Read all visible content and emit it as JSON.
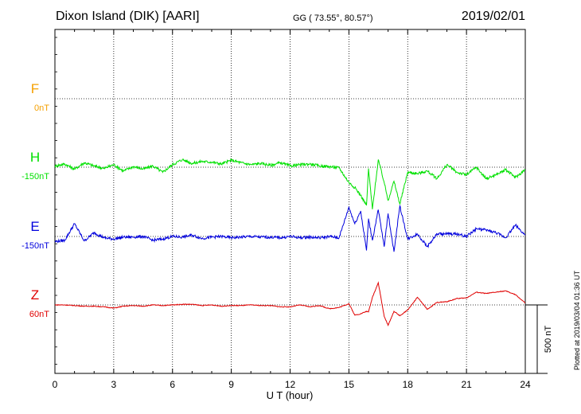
{
  "header": {
    "station": "Dixon Island (DIK)  [AARI]",
    "coords": "GG ( 73.55°,  80.57°)",
    "date": "2019/02/01"
  },
  "plotted_note": "Plotted at 2019/03/04 01:36 UT",
  "colors": {
    "F": "#f5a000",
    "H": "#00e000",
    "E": "#0000dd",
    "Z": "#e00000"
  },
  "chart_data": {
    "type": "line",
    "xlabel": "U T (hour)",
    "xlim": [
      0,
      24
    ],
    "xticks": [
      "0",
      "3",
      "6",
      "9",
      "12",
      "15",
      "18",
      "21",
      "24"
    ],
    "scale_bar": "500 nT",
    "series": [
      {
        "name": "F",
        "offset": "0nT",
        "x": [],
        "y": []
      },
      {
        "name": "H",
        "offset": "-150nT",
        "x": [
          0,
          0.5,
          1,
          1.5,
          2,
          2.5,
          3,
          3.5,
          4,
          4.5,
          5,
          5.5,
          6,
          6.5,
          7,
          7.5,
          8,
          8.5,
          9,
          9.5,
          10,
          10.5,
          11,
          11.5,
          12,
          12.5,
          13,
          13.5,
          14,
          14.5,
          15,
          15.3,
          15.6,
          15.9,
          16.0,
          16.2,
          16.5,
          16.8,
          17.0,
          17.3,
          17.6,
          18,
          18.5,
          19,
          19.5,
          20,
          20.5,
          21,
          21.5,
          22,
          22.5,
          23,
          23.5,
          24
        ],
        "y": [
          10,
          25,
          -15,
          35,
          10,
          -10,
          20,
          -30,
          5,
          -15,
          10,
          -40,
          20,
          60,
          30,
          45,
          40,
          25,
          55,
          35,
          20,
          30,
          15,
          35,
          10,
          20,
          25,
          10,
          5,
          -5,
          -120,
          -160,
          -220,
          -300,
          -10,
          -330,
          60,
          -120,
          -260,
          -110,
          -290,
          -40,
          -50,
          -30,
          -90,
          20,
          -40,
          -60,
          0,
          -90,
          -60,
          -20,
          -80,
          -20
        ]
      },
      {
        "name": "E",
        "offset": "-150nT",
        "x": [
          0,
          0.5,
          1,
          1.5,
          2,
          2.5,
          3,
          3.5,
          4,
          4.5,
          5,
          5.5,
          6,
          6.5,
          7,
          7.5,
          8,
          8.5,
          9,
          9.5,
          10,
          10.5,
          11,
          11.5,
          12,
          12.5,
          13,
          13.5,
          14,
          14.5,
          15,
          15.3,
          15.6,
          15.9,
          16.0,
          16.2,
          16.5,
          16.8,
          17.0,
          17.3,
          17.6,
          18,
          18.5,
          19,
          19.5,
          20,
          20.5,
          21,
          21.5,
          22,
          22.5,
          23,
          23.5,
          24
        ],
        "y": [
          -40,
          -30,
          100,
          -35,
          30,
          -10,
          -20,
          -5,
          -5,
          0,
          -30,
          -20,
          0,
          -5,
          10,
          -15,
          -5,
          0,
          -10,
          -5,
          0,
          -5,
          -5,
          -10,
          0,
          -10,
          -5,
          -10,
          0,
          -10,
          230,
          100,
          200,
          -110,
          140,
          -30,
          210,
          -80,
          180,
          -120,
          240,
          -20,
          20,
          -80,
          20,
          20,
          20,
          0,
          60,
          50,
          30,
          -10,
          90,
          10
        ]
      },
      {
        "name": "Z",
        "offset": "60nT",
        "x": [
          0,
          0.5,
          1,
          1.5,
          2,
          2.5,
          3,
          3.5,
          4,
          4.5,
          5,
          5.5,
          6,
          6.5,
          7,
          7.5,
          8,
          8.5,
          9,
          9.5,
          10,
          10.5,
          11,
          11.5,
          12,
          12.5,
          13,
          13.5,
          14,
          14.5,
          15,
          15.3,
          15.6,
          15.9,
          16.0,
          16.2,
          16.5,
          16.8,
          17.0,
          17.3,
          17.6,
          18,
          18.5,
          19,
          19.5,
          20,
          20.5,
          21,
          21.5,
          22,
          22.5,
          23,
          23.5,
          24
        ],
        "y": [
          0,
          0,
          -5,
          -10,
          -10,
          -15,
          -25,
          -10,
          -5,
          -10,
          0,
          -5,
          0,
          5,
          5,
          -5,
          0,
          -10,
          -5,
          -5,
          0,
          -5,
          -5,
          -15,
          -15,
          0,
          -15,
          -5,
          -30,
          -20,
          10,
          -80,
          -70,
          -50,
          -55,
          60,
          175,
          -90,
          -160,
          -50,
          -85,
          -40,
          60,
          -35,
          20,
          25,
          50,
          55,
          100,
          90,
          100,
          110,
          80,
          15
        ]
      }
    ]
  }
}
